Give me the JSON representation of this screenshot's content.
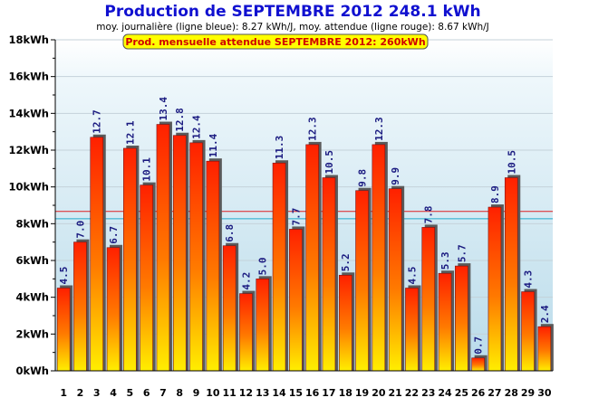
{
  "chart_data": {
    "type": "bar",
    "title": "Production de SEPTEMBRE 2012  248.1 kWh",
    "subtitle": "moy. journalière (ligne bleue): 8.27 kWh/J,   moy. attendue (ligne rouge): 8.67 kWh/J",
    "banner": "Prod. mensuelle attendue SEPTEMBRE 2012: 260kWh",
    "categories": [
      "1",
      "2",
      "3",
      "4",
      "5",
      "6",
      "7",
      "8",
      "9",
      "10",
      "11",
      "12",
      "13",
      "14",
      "15",
      "16",
      "17",
      "18",
      "19",
      "20",
      "21",
      "22",
      "23",
      "24",
      "25",
      "26",
      "27",
      "28",
      "29",
      "30"
    ],
    "values": [
      4.5,
      7.0,
      12.7,
      6.7,
      12.1,
      10.1,
      13.4,
      12.8,
      12.4,
      11.4,
      6.8,
      4.2,
      5.0,
      11.3,
      7.7,
      12.3,
      10.5,
      5.2,
      9.8,
      12.3,
      9.9,
      4.5,
      7.8,
      5.3,
      5.7,
      0.7,
      8.9,
      10.5,
      4.3,
      2.4
    ],
    "value_labels": [
      "4.5",
      "7.0",
      "12.7",
      "6.7",
      "12.1",
      "10.1",
      "13.4",
      "12.8",
      "12.4",
      "11.4",
      "6.8",
      "4.2",
      "5.0",
      "11.3",
      "7.7",
      "12.3",
      "10.5",
      "5.2",
      "9.8",
      "12.3",
      "9.9",
      "4.5",
      "7.8",
      "5.3",
      "5.7",
      "0.7",
      "8.9",
      "10.5",
      "4.3",
      "2.4"
    ],
    "yticks": [
      0,
      2,
      4,
      6,
      8,
      10,
      12,
      14,
      16,
      18
    ],
    "ytick_labels": [
      "0kWh",
      "2kWh",
      "4kWh",
      "6kWh",
      "8kWh",
      "10kWh",
      "12kWh",
      "14kWh",
      "16kWh",
      "18kWh"
    ],
    "ylim": [
      0,
      18
    ],
    "average_line": {
      "value": 8.27,
      "color": "#22aacc"
    },
    "expected_line": {
      "value": 8.67,
      "color": "#dd2020"
    },
    "bar_gradient": {
      "top": "#ff2000",
      "middle": "#ff7a00",
      "bottom": "#ffee00"
    },
    "grid": true,
    "xlabel": "",
    "ylabel": ""
  }
}
